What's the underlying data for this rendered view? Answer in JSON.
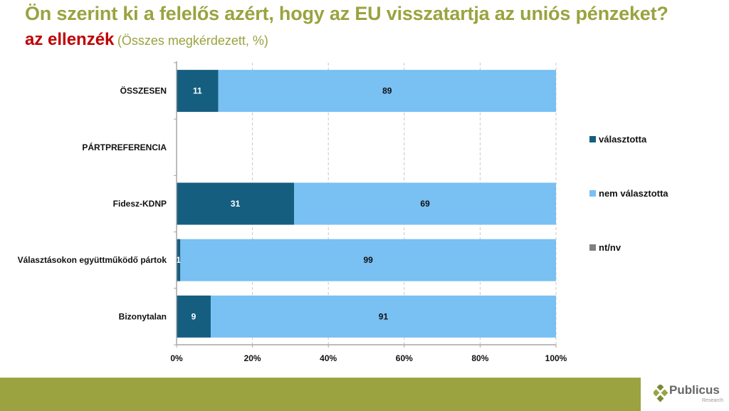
{
  "header": {
    "title": "Ön szerint ki a felelős azért, hogy az EU visszatartja az uniós pénzeket?",
    "subtitle_main": "az ellenzék",
    "subtitle_note": "(Összes megkérdezett, %)"
  },
  "colors": {
    "title": "#9aa33f",
    "subtitle": "#c00000",
    "valasztotta": "#155e80",
    "nem_valasztotta": "#79c0f3",
    "ntnv": "#808080",
    "footer": "#9aa33f"
  },
  "chart_data": {
    "type": "bar",
    "orientation": "horizontal",
    "stacked": true,
    "title": "Ön szerint ki a felelős azért, hogy az EU visszatartja az uniós pénzeket?",
    "categories": [
      "ÖSSZESEN",
      "PÁRTPREFERENCIA",
      "Fidesz-KDNP",
      "Választásokon együttműködő pártok",
      "Bizonytalan"
    ],
    "series": [
      {
        "name": "választotta",
        "color": "#155e80",
        "values": [
          11,
          null,
          31,
          1,
          9
        ]
      },
      {
        "name": "nem választotta",
        "color": "#79c0f3",
        "values": [
          89,
          null,
          69,
          99,
          91
        ]
      },
      {
        "name": "nt/nv",
        "color": "#808080",
        "values": [
          0,
          null,
          0,
          0,
          0
        ]
      }
    ],
    "xlim": [
      0,
      100
    ],
    "xticks": [
      "0%",
      "20%",
      "40%",
      "60%",
      "80%",
      "100%"
    ],
    "xtick_values": [
      0,
      20,
      40,
      60,
      80,
      100
    ],
    "grid": "vertical dashed",
    "legend_position": "right"
  },
  "legend": {
    "items": [
      "választotta",
      "nem választotta",
      "nt/nv"
    ]
  },
  "footer": {
    "logo_name": "Publicus",
    "logo_sub": "Research"
  }
}
